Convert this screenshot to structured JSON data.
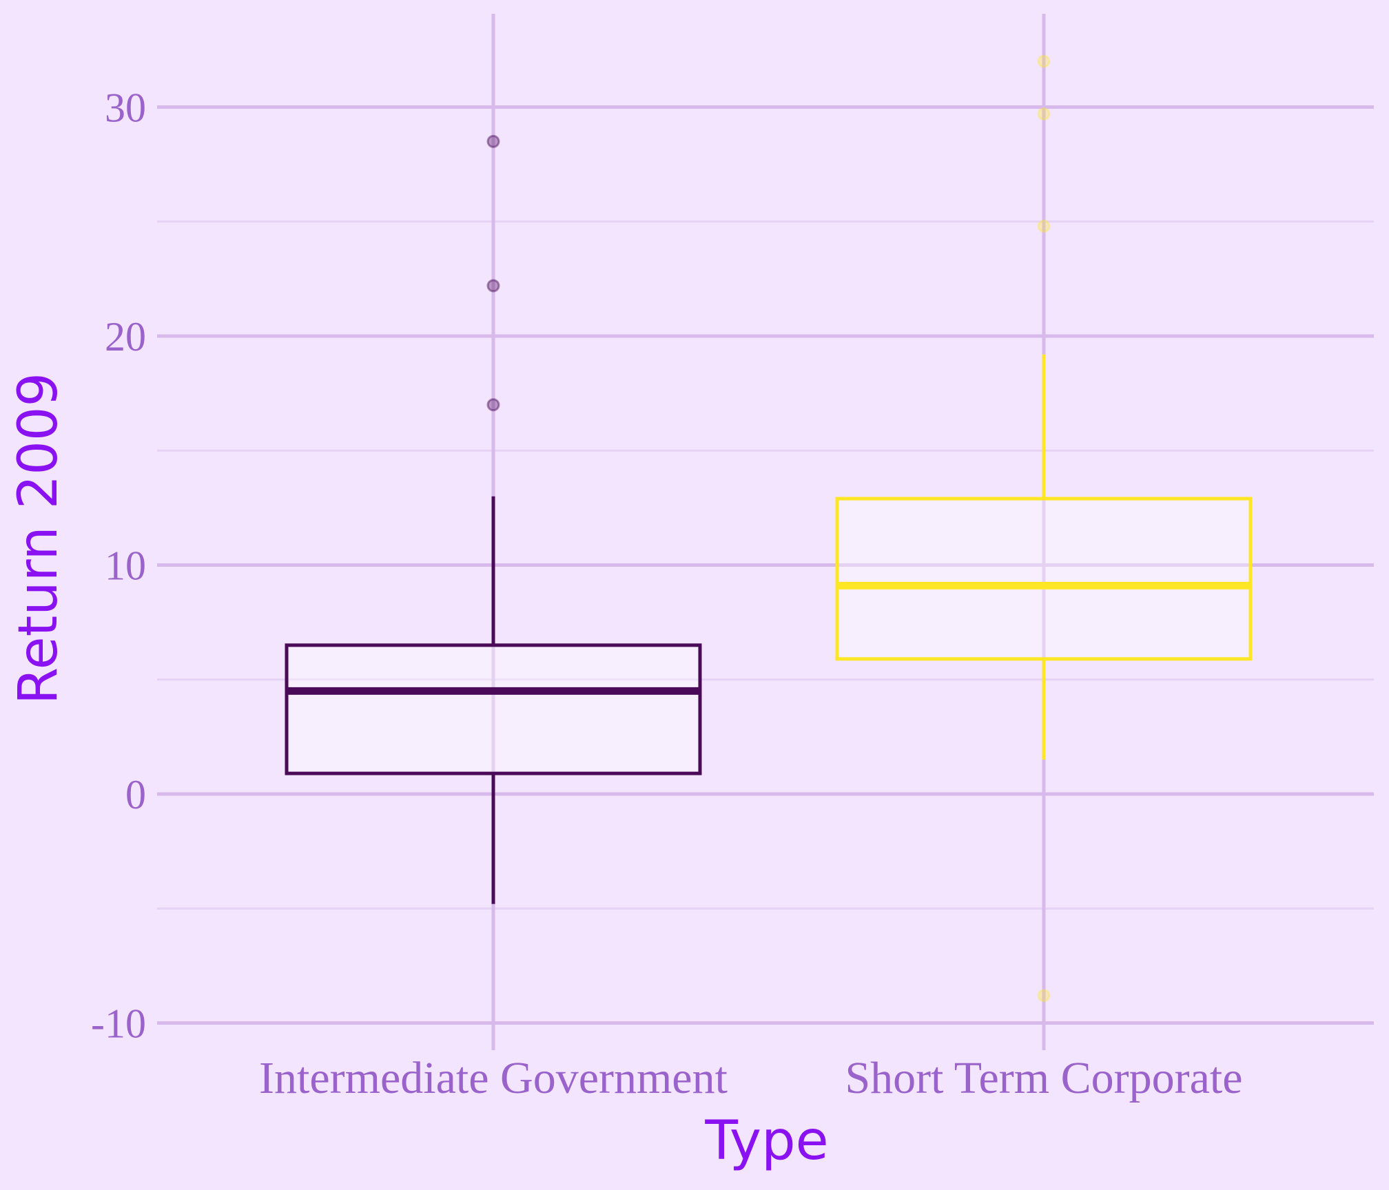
{
  "chart_data": {
    "type": "box",
    "xlabel": "Type",
    "ylabel": "Return 2009",
    "categories": [
      "Intermediate Government",
      "Short Term Corporate"
    ],
    "ylim": [
      -11,
      34
    ],
    "yticks": [
      -10,
      0,
      10,
      20,
      30
    ],
    "grid": true,
    "legend": "none",
    "boxes": [
      {
        "category": "Intermediate Government",
        "color": "#4a0a58",
        "whisker_low": -4.8,
        "q1": 0.9,
        "median": 4.5,
        "q3": 6.5,
        "whisker_high": 13.0,
        "outliers": [
          17.0,
          22.2,
          28.5
        ]
      },
      {
        "category": "Short Term Corporate",
        "color": "#fde725",
        "whisker_low": 1.5,
        "q1": 5.9,
        "median": 9.1,
        "q3": 12.9,
        "whisker_high": 19.2,
        "outliers": [
          -8.8,
          24.8,
          29.7,
          32.0
        ]
      }
    ]
  },
  "colors": {
    "background": "#f3e5fd",
    "grid_major": "#d7b9ec",
    "grid_minor": "#e6d2f5",
    "tick_text": "#9a62cb",
    "axis_title": "#8a12f2"
  }
}
